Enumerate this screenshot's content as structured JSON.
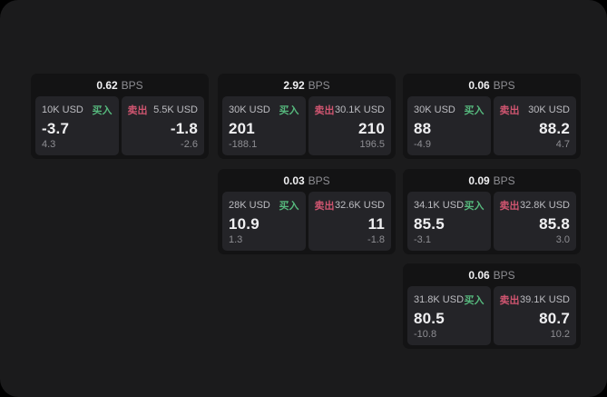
{
  "colors": {
    "panel_bg": "#1b1b1c",
    "card_bg": "#131314",
    "subcard_bg": "#242428",
    "buy": "#56b87d",
    "sell": "#cf5570",
    "white": "#f0f0f2",
    "label_gray": "#bcbcc1",
    "muted_gray": "#8e8e93"
  },
  "labels": {
    "bps": "BPS",
    "buy": "买入",
    "sell": "卖出"
  },
  "cards": [
    {
      "bps": "0.62",
      "buy": {
        "amount": "10K USD",
        "price": "-3.7",
        "delta": "4.3"
      },
      "sell": {
        "amount": "5.5K USD",
        "price": "-1.8",
        "delta": "-2.6"
      }
    },
    {
      "bps": "2.92",
      "buy": {
        "amount": "30K USD",
        "price": "201",
        "delta": "-188.1"
      },
      "sell": {
        "amount": "30.1K USD",
        "price": "210",
        "delta": "196.5"
      }
    },
    {
      "bps": "0.06",
      "buy": {
        "amount": "30K USD",
        "price": "88",
        "delta": "-4.9"
      },
      "sell": {
        "amount": "30K USD",
        "price": "88.2",
        "delta": "4.7"
      }
    },
    {
      "bps": "0.03",
      "buy": {
        "amount": "28K USD",
        "price": "10.9",
        "delta": "1.3"
      },
      "sell": {
        "amount": "32.6K USD",
        "price": "11",
        "delta": "-1.8"
      }
    },
    {
      "bps": "0.09",
      "buy": {
        "amount": "34.1K USD",
        "price": "85.5",
        "delta": "-3.1"
      },
      "sell": {
        "amount": "32.8K USD",
        "price": "85.8",
        "delta": "3.0"
      }
    },
    {
      "bps": "0.06",
      "buy": {
        "amount": "31.8K USD",
        "price": "80.5",
        "delta": "-10.8"
      },
      "sell": {
        "amount": "39.1K USD",
        "price": "80.7",
        "delta": "10.2"
      }
    }
  ]
}
